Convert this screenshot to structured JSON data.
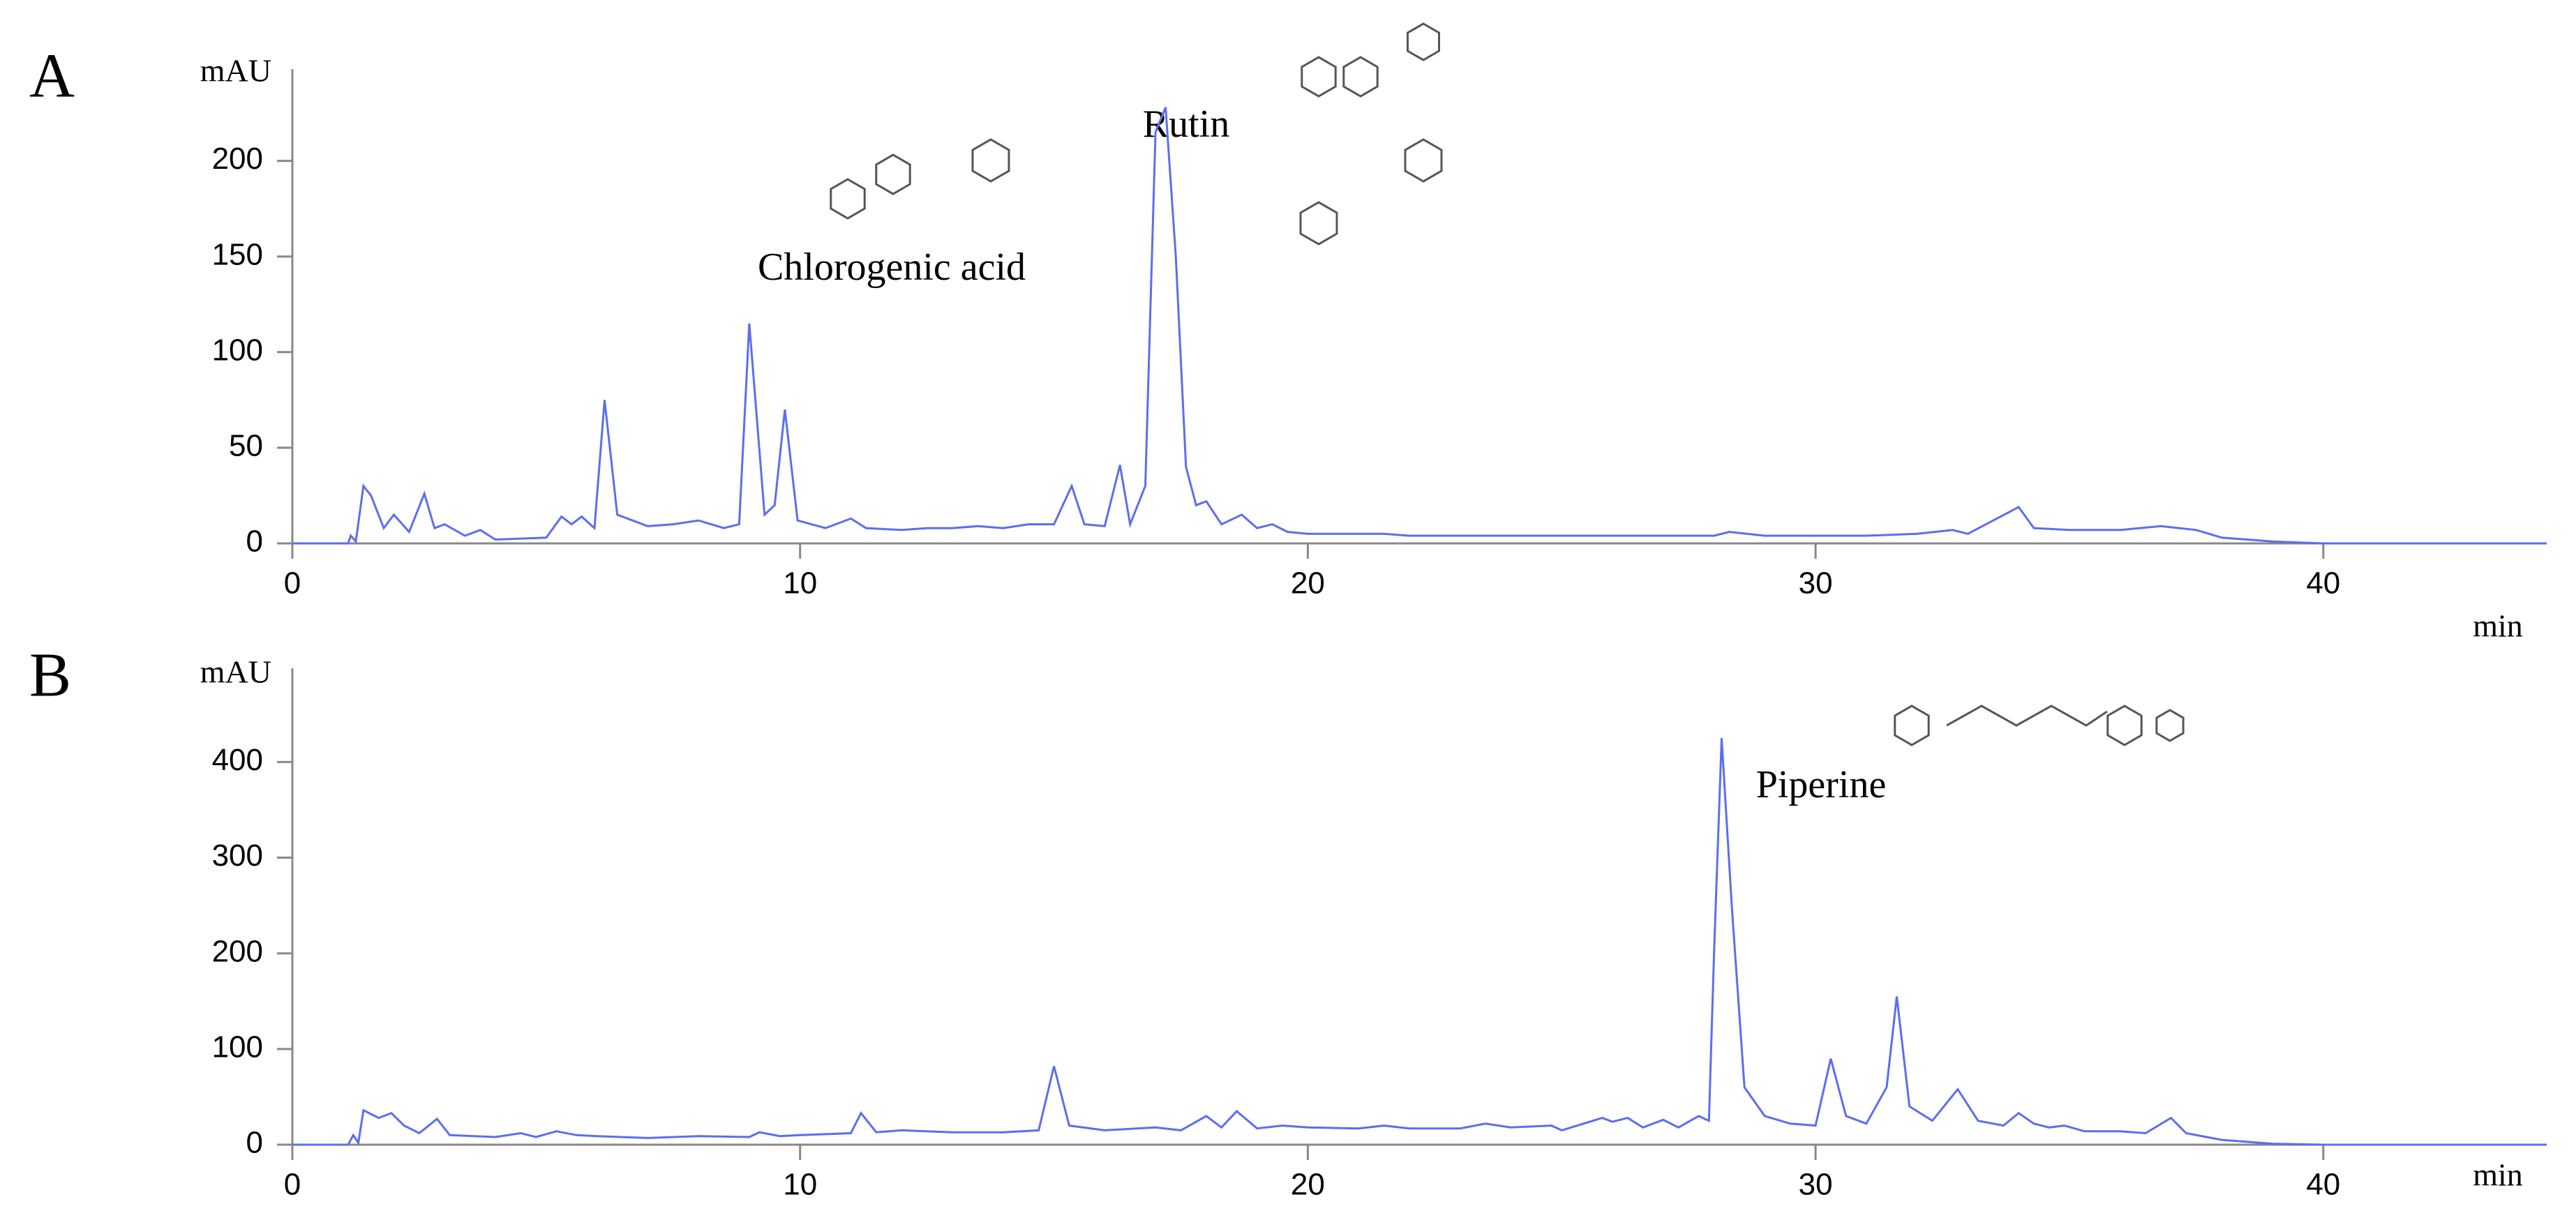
{
  "chart_data": [
    {
      "type": "line",
      "label": "A",
      "y_label": "mAU",
      "x_label": "min",
      "xlim": [
        0,
        44.4
      ],
      "ylim": [
        0,
        248
      ],
      "xticks": [
        0,
        10,
        20,
        30,
        40
      ],
      "yticks": [
        0,
        50,
        100,
        150,
        200
      ],
      "annotations": [
        "Chlorogenic acid",
        "Rutin"
      ],
      "x": [
        0,
        1.1,
        1.15,
        1.25,
        1.4,
        1.55,
        1.8,
        2.0,
        2.3,
        2.6,
        2.8,
        3.0,
        3.4,
        3.7,
        4.0,
        5.0,
        5.3,
        5.5,
        5.7,
        5.95,
        6.15,
        6.4,
        7.0,
        7.5,
        8.0,
        8.5,
        8.8,
        9.0,
        9.3,
        9.5,
        9.7,
        9.95,
        10.5,
        11.0,
        11.3,
        12.0,
        12.5,
        13.0,
        13.5,
        14.0,
        14.5,
        15.0,
        15.35,
        15.6,
        16.0,
        16.3,
        16.5,
        16.8,
        17.0,
        17.2,
        17.4,
        17.6,
        17.8,
        18.0,
        18.3,
        18.7,
        19.0,
        19.3,
        19.6,
        20,
        21.5,
        22,
        25,
        28,
        28.3,
        29,
        31,
        32,
        32.7,
        33,
        34.0,
        34.3,
        35,
        36,
        36.8,
        37.5,
        38,
        39,
        40,
        44.4
      ],
      "series": [
        {
          "color": "#5b6ef0",
          "values": [
            0,
            0,
            4,
            1,
            30,
            25,
            8,
            15,
            6,
            26,
            8,
            10,
            4,
            7,
            2,
            3,
            14,
            10,
            14,
            8,
            75,
            15,
            9,
            10,
            12,
            8,
            10,
            115,
            15,
            20,
            70,
            12,
            8,
            13,
            8,
            7,
            8,
            8,
            9,
            8,
            10,
            10,
            30,
            10,
            9,
            41,
            10,
            30,
            215,
            228,
            150,
            40,
            20,
            22,
            10,
            15,
            8,
            10,
            6,
            5,
            5,
            4,
            4,
            4,
            6,
            4,
            4,
            5,
            7,
            5,
            19,
            8,
            7,
            7,
            9,
            7,
            3,
            1,
            0,
            0
          ]
        }
      ]
    },
    {
      "type": "line",
      "label": "B",
      "y_label": "mAU",
      "x_label": "min",
      "xlim": [
        0,
        44.4
      ],
      "ylim": [
        0,
        498
      ],
      "xticks": [
        0,
        10,
        20,
        30,
        40
      ],
      "yticks": [
        0,
        100,
        200,
        300,
        400
      ],
      "annotations": [
        "Piperine"
      ],
      "x": [
        0,
        1.1,
        1.2,
        1.3,
        1.4,
        1.7,
        1.95,
        2.2,
        2.5,
        2.85,
        3.1,
        4,
        4.5,
        4.8,
        5.2,
        5.6,
        6,
        7,
        8,
        9,
        9.2,
        9.6,
        10,
        11,
        11.2,
        11.5,
        12,
        13,
        14,
        14.7,
        15.0,
        15.3,
        16,
        17,
        17.5,
        18,
        18.3,
        18.6,
        19,
        19.5,
        20,
        21,
        21.5,
        22,
        23,
        23.5,
        24,
        24.8,
        25,
        25.8,
        26.0,
        26.3,
        26.6,
        27.0,
        27.3,
        27.7,
        27.9,
        28.0,
        28.15,
        28.35,
        28.6,
        29,
        29.5,
        30.0,
        30.3,
        30.6,
        31,
        31.4,
        31.6,
        31.85,
        32.3,
        32.8,
        33.2,
        33.7,
        34.0,
        34.3,
        34.6,
        34.9,
        35.3,
        36,
        36.5,
        37.0,
        37.3,
        38,
        39,
        40,
        44.4
      ],
      "series": [
        {
          "color": "#5b6ef0",
          "values": [
            0,
            0,
            10,
            2,
            36,
            28,
            33,
            20,
            12,
            27,
            10,
            8,
            12,
            8,
            14,
            10,
            9,
            7,
            9,
            8,
            13,
            9,
            10,
            12,
            33,
            13,
            15,
            13,
            13,
            15,
            82,
            20,
            15,
            18,
            15,
            30,
            18,
            35,
            17,
            20,
            18,
            17,
            20,
            17,
            17,
            22,
            18,
            20,
            15,
            28,
            24,
            28,
            18,
            26,
            18,
            30,
            25,
            200,
            425,
            250,
            60,
            30,
            22,
            20,
            90,
            30,
            22,
            60,
            155,
            40,
            25,
            58,
            25,
            20,
            33,
            22,
            18,
            20,
            14,
            14,
            12,
            28,
            12,
            5,
            1,
            0,
            0
          ]
        }
      ]
    }
  ]
}
